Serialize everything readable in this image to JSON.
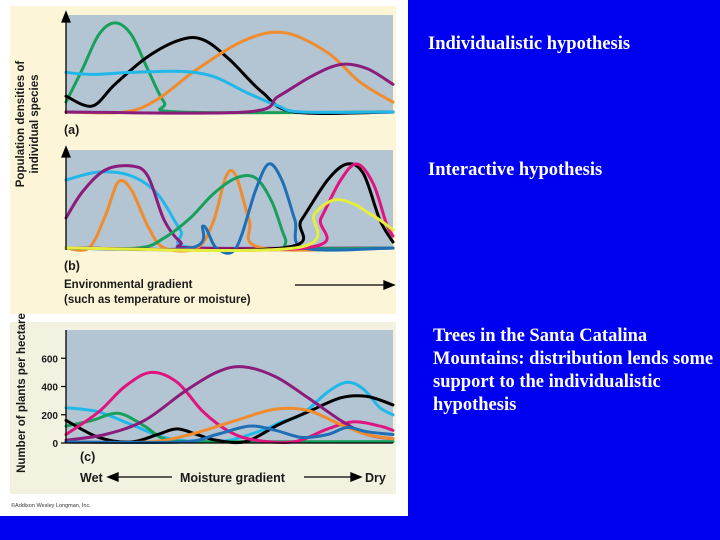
{
  "captions": {
    "individualistic": "Individualistic hypothesis",
    "interactive": "Interactive hypothesis",
    "trees": "Trees in the Santa Catalina Mountains: distribution lends some support to the individualistic hypothesis"
  },
  "figure": {
    "credit": "©Addison Wesley Longman, Inc.",
    "top_ylabel_line1": "Population densities of",
    "top_ylabel_line2": "individual species",
    "gradient_line1": "Environmental gradient",
    "gradient_line2": "(such as temperature or moisture)"
  },
  "colors": {
    "background": "#0000f0",
    "panel_top": "#fdf5d8",
    "panel_bottom": "#f3f1df",
    "plot_bg": "#b3c4d2",
    "green": "#17a05b",
    "black": "#000000",
    "orange": "#f08c2d",
    "purple": "#8c1c7c",
    "cyan": "#20b8ea",
    "magenta": "#e0147e",
    "blue": "#1f6fb6",
    "yellow": "#e4ef3c"
  },
  "chart_data": [
    {
      "type": "line",
      "panel_label": "(a)",
      "xlim": [
        0,
        100
      ],
      "ylim": [
        0,
        100
      ],
      "series": [
        {
          "color": "green",
          "points": [
            [
              0,
              12
            ],
            [
              5,
              45
            ],
            [
              10,
              80
            ],
            [
              15,
              92
            ],
            [
              20,
              80
            ],
            [
              25,
              45
            ],
            [
              30,
              12
            ],
            [
              35,
              2
            ],
            [
              100,
              2
            ]
          ]
        },
        {
          "color": "black",
          "points": [
            [
              0,
              18
            ],
            [
              8,
              8
            ],
            [
              15,
              30
            ],
            [
              25,
              58
            ],
            [
              35,
              75
            ],
            [
              42,
              75
            ],
            [
              50,
              55
            ],
            [
              60,
              22
            ],
            [
              70,
              2
            ],
            [
              100,
              2
            ]
          ]
        },
        {
          "color": "orange",
          "points": [
            [
              0,
              2
            ],
            [
              18,
              2
            ],
            [
              28,
              15
            ],
            [
              40,
              45
            ],
            [
              55,
              75
            ],
            [
              67,
              82
            ],
            [
              80,
              62
            ],
            [
              90,
              32
            ],
            [
              100,
              12
            ]
          ]
        },
        {
          "color": "cyan",
          "points": [
            [
              0,
              42
            ],
            [
              8,
              40
            ],
            [
              20,
              42
            ],
            [
              35,
              43
            ],
            [
              45,
              38
            ],
            [
              55,
              22
            ],
            [
              65,
              8
            ],
            [
              72,
              2
            ],
            [
              100,
              2
            ]
          ]
        },
        {
          "color": "purple",
          "points": [
            [
              0,
              2
            ],
            [
              55,
              2
            ],
            [
              65,
              18
            ],
            [
              75,
              38
            ],
            [
              84,
              50
            ],
            [
              92,
              46
            ],
            [
              100,
              30
            ]
          ]
        }
      ]
    },
    {
      "type": "line",
      "panel_label": "(b)",
      "xlim": [
        0,
        100
      ],
      "ylim": [
        0,
        100
      ],
      "series": [
        {
          "color": "cyan",
          "points": [
            [
              0,
              70
            ],
            [
              10,
              78
            ],
            [
              20,
              74
            ],
            [
              28,
              56
            ],
            [
              35,
              20
            ],
            [
              40,
              2
            ],
            [
              100,
              2
            ]
          ]
        },
        {
          "color": "purple",
          "points": [
            [
              0,
              32
            ],
            [
              5,
              58
            ],
            [
              12,
              80
            ],
            [
              20,
              84
            ],
            [
              25,
              74
            ],
            [
              30,
              30
            ],
            [
              35,
              8
            ],
            [
              40,
              2
            ],
            [
              100,
              2
            ]
          ]
        },
        {
          "color": "orange",
          "points": [
            [
              0,
              2
            ],
            [
              7,
              2
            ],
            [
              12,
              34
            ],
            [
              16,
              68
            ],
            [
              20,
              60
            ],
            [
              25,
              24
            ],
            [
              30,
              2
            ],
            [
              40,
              2
            ],
            [
              45,
              28
            ],
            [
              49,
              74
            ],
            [
              52,
              74
            ],
            [
              56,
              30
            ],
            [
              60,
              2
            ],
            [
              100,
              2
            ]
          ]
        },
        {
          "color": "green",
          "points": [
            [
              0,
              2
            ],
            [
              22,
              2
            ],
            [
              30,
              12
            ],
            [
              38,
              32
            ],
            [
              45,
              56
            ],
            [
              52,
              72
            ],
            [
              58,
              72
            ],
            [
              63,
              48
            ],
            [
              67,
              12
            ],
            [
              70,
              2
            ],
            [
              100,
              2
            ]
          ]
        },
        {
          "color": "blue",
          "points": [
            [
              0,
              2
            ],
            [
              38,
              2
            ],
            [
              42,
              24
            ],
            [
              46,
              2
            ],
            [
              52,
              2
            ],
            [
              58,
              60
            ],
            [
              62,
              86
            ],
            [
              66,
              70
            ],
            [
              70,
              30
            ],
            [
              73,
              2
            ],
            [
              100,
              2
            ]
          ]
        },
        {
          "color": "black",
          "points": [
            [
              0,
              2
            ],
            [
              66,
              2
            ],
            [
              72,
              30
            ],
            [
              80,
              70
            ],
            [
              86,
              86
            ],
            [
              91,
              76
            ],
            [
              96,
              30
            ],
            [
              100,
              8
            ]
          ]
        },
        {
          "color": "magenta",
          "points": [
            [
              0,
              2
            ],
            [
              73,
              2
            ],
            [
              78,
              32
            ],
            [
              84,
              70
            ],
            [
              89,
              86
            ],
            [
              94,
              66
            ],
            [
              98,
              26
            ],
            [
              100,
              14
            ]
          ]
        },
        {
          "color": "yellow",
          "points": [
            [
              0,
              2
            ],
            [
              70,
              2
            ],
            [
              76,
              36
            ],
            [
              82,
              50
            ],
            [
              88,
              46
            ],
            [
              92,
              38
            ],
            [
              96,
              30
            ],
            [
              100,
              20
            ]
          ]
        }
      ]
    },
    {
      "type": "line",
      "panel_label": "(c)",
      "ylabel": "Number of plants per hectare",
      "xlabel": "Moisture gradient",
      "x_left_label": "Wet",
      "x_right_label": "Dry",
      "xlim": [
        0,
        100
      ],
      "ylim": [
        0,
        800
      ],
      "yticks": [
        0,
        200,
        400,
        600
      ],
      "series": [
        {
          "color": "cyan",
          "points": [
            [
              0,
              250
            ],
            [
              10,
              220
            ],
            [
              20,
              130
            ],
            [
              30,
              40
            ],
            [
              40,
              10
            ],
            [
              50,
              20
            ],
            [
              60,
              90
            ],
            [
              66,
              150
            ],
            [
              72,
              200
            ],
            [
              80,
              360
            ],
            [
              86,
              430
            ],
            [
              91,
              380
            ],
            [
              96,
              250
            ],
            [
              100,
              200
            ]
          ]
        },
        {
          "color": "green",
          "points": [
            [
              0,
              120
            ],
            [
              8,
              160
            ],
            [
              16,
              210
            ],
            [
              24,
              120
            ],
            [
              30,
              30
            ],
            [
              40,
              10
            ],
            [
              100,
              10
            ]
          ]
        },
        {
          "color": "black",
          "points": [
            [
              0,
              160
            ],
            [
              10,
              40
            ],
            [
              20,
              5
            ],
            [
              28,
              60
            ],
            [
              34,
              100
            ],
            [
              40,
              60
            ],
            [
              46,
              20
            ],
            [
              55,
              10
            ],
            [
              65,
              130
            ],
            [
              74,
              220
            ],
            [
              84,
              320
            ],
            [
              92,
              330
            ],
            [
              100,
              270
            ]
          ]
        },
        {
          "color": "magenta",
          "points": [
            [
              0,
              60
            ],
            [
              10,
              220
            ],
            [
              18,
              400
            ],
            [
              26,
              500
            ],
            [
              34,
              430
            ],
            [
              42,
              220
            ],
            [
              50,
              80
            ],
            [
              58,
              20
            ],
            [
              70,
              10
            ],
            [
              80,
              100
            ],
            [
              88,
              150
            ],
            [
              96,
              120
            ],
            [
              100,
              90
            ]
          ]
        },
        {
          "color": "purple",
          "points": [
            [
              0,
              20
            ],
            [
              12,
              60
            ],
            [
              24,
              160
            ],
            [
              36,
              360
            ],
            [
              46,
              500
            ],
            [
              54,
              540
            ],
            [
              64,
              470
            ],
            [
              74,
              320
            ],
            [
              84,
              160
            ],
            [
              92,
              60
            ],
            [
              100,
              30
            ]
          ]
        },
        {
          "color": "orange",
          "points": [
            [
              0,
              5
            ],
            [
              25,
              5
            ],
            [
              38,
              60
            ],
            [
              52,
              160
            ],
            [
              64,
              240
            ],
            [
              74,
              230
            ],
            [
              84,
              130
            ],
            [
              92,
              60
            ],
            [
              100,
              30
            ]
          ]
        },
        {
          "color": "blue",
          "points": [
            [
              0,
              5
            ],
            [
              35,
              5
            ],
            [
              46,
              60
            ],
            [
              56,
              120
            ],
            [
              64,
              90
            ],
            [
              72,
              40
            ],
            [
              80,
              60
            ],
            [
              86,
              110
            ],
            [
              92,
              80
            ],
            [
              100,
              60
            ]
          ]
        }
      ]
    }
  ]
}
